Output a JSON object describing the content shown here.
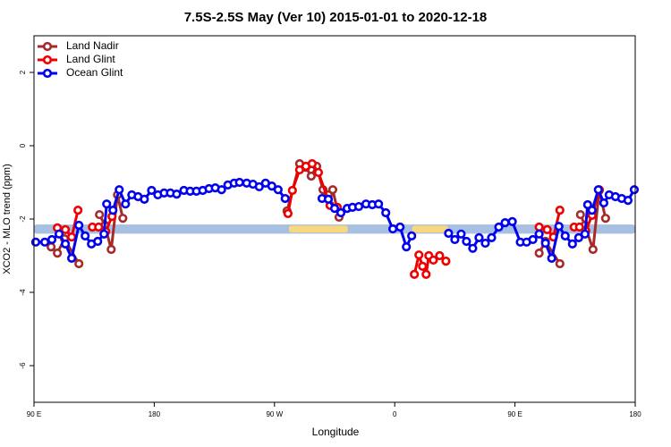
{
  "chart_data": {
    "type": "line",
    "title": "7.5S-2.5S May (Ver 10)   2015-01-01 to 2020-12-18",
    "x_label": "Longitude",
    "y_label": "XCO2 - MLO trend (ppm)",
    "xlim": [
      90,
      540
    ],
    "ylim": [
      -7,
      3
    ],
    "xticks": [
      {
        "value": 90,
        "label": "90 E"
      },
      {
        "value": 180,
        "label": "180"
      },
      {
        "value": 270,
        "label": "90 W"
      },
      {
        "value": 360,
        "label": "0"
      },
      {
        "value": 450,
        "label": "90 E"
      },
      {
        "value": 540,
        "label": "180"
      }
    ],
    "yticks": [
      -6,
      -4,
      -2,
      0,
      2
    ],
    "legend": "top-left",
    "bands": [
      {
        "color": "#a7bfe0",
        "x": [
          90,
          540
        ],
        "y": [
          -2.4,
          -2.15
        ]
      },
      {
        "color": "#f8d77e",
        "x": [
          280.7,
          325
        ],
        "y": [
          -2.37,
          -2.18
        ]
      },
      {
        "color": "#f8d77e",
        "x": [
          373,
          400
        ],
        "y": [
          -2.37,
          -2.18
        ]
      }
    ],
    "series": [
      {
        "name": "Land Nadir",
        "color": "#a52a2a",
        "x": [
          102.8,
          107.5,
          112.8,
          123.6,
          null,
          139.0,
          143.1,
          147.8,
          152.5,
          156.5,
          null,
          279.4,
          288.8,
          293.5,
          297.5,
          301.6,
          306.3,
          310.3,
          313.6,
          318.3,
          null,
          468.1,
          472.8,
          483.6,
          null,
          499.0,
          502.4,
          508.4,
          513.1,
          517.8
        ],
        "values": [
          -2.76,
          -2.93,
          -2.54,
          -3.22,
          null,
          -1.88,
          -2.17,
          -2.83,
          -1.34,
          -1.98,
          null,
          -1.78,
          -0.49,
          -0.59,
          -0.83,
          -0.56,
          -1.2,
          -1.34,
          -1.2,
          -1.95,
          null,
          -2.93,
          -2.61,
          -3.22,
          null,
          -1.88,
          -2.17,
          -2.83,
          -1.22,
          -1.98
        ]
      },
      {
        "name": "Land Glint",
        "color": "#ee0000",
        "x": [
          107.5,
          113.5,
          118.2,
          122.9,
          null,
          133.7,
          138.4,
          143.7,
          148.4,
          null,
          280.1,
          283.4,
          288.8,
          293.5,
          298.2,
          302.9,
          311.6,
          317.0,
          null,
          374.7,
          378.1,
          380.8,
          383.5,
          385.5,
          388.9,
          393.6,
          398.3,
          null,
          468.1,
          474.1,
          478.8,
          483.6,
          null,
          494.3,
          498.3,
          503.0,
          507.7,
          513.1
        ],
        "values": [
          -2.24,
          -2.29,
          -2.49,
          -1.76,
          null,
          -2.22,
          -2.22,
          -2.34,
          -1.93,
          null,
          -1.85,
          -1.22,
          -0.66,
          -0.56,
          -0.49,
          -0.73,
          -1.63,
          -1.68,
          null,
          -3.51,
          -2.98,
          -3.29,
          -3.51,
          -3.0,
          -3.12,
          -3.0,
          -3.15,
          null,
          -2.22,
          -2.29,
          -2.49,
          -1.76,
          null,
          -2.22,
          -2.22,
          -2.32,
          -1.9,
          -1.2
        ]
      },
      {
        "name": "Ocean Glint",
        "color": "#0000ee",
        "x": [
          91.3,
          98.1,
          103.4,
          108.8,
          113.5,
          118.2,
          123.6,
          128.3,
          133.0,
          137.7,
          142.4,
          144.4,
          149.1,
          153.8,
          158.5,
          163.2,
          167.9,
          172.6,
          178.0,
          182.7,
          187.4,
          192.1,
          196.8,
          202.2,
          206.9,
          211.6,
          216.3,
          221.0,
          225.7,
          230.4,
          235.1,
          239.8,
          243.8,
          249.2,
          253.9,
          258.6,
          263.3,
          268.0,
          272.7,
          278.0,
          null,
          305.6,
          310.3,
          315.0,
          319.7,
          324.4,
          328.4,
          333.1,
          338.5,
          343.2,
          347.9,
          353.3,
          358.6,
          364.0,
          368.7,
          372.7,
          null,
          400.3,
          405.0,
          409.7,
          413.7,
          418.4,
          423.1,
          427.8,
          432.5,
          437.9,
          442.6,
          448.0,
          454.0,
          458.7,
          463.4,
          468.1,
          472.8,
          477.5,
          482.9,
          487.6,
          493.0,
          497.7,
          502.4,
          504.4,
          507.7,
          512.4,
          516.5,
          520.5,
          525.2,
          529.9,
          534.6,
          539.3
        ],
        "values": [
          -2.63,
          -2.63,
          -2.56,
          -2.41,
          -2.68,
          -3.07,
          -2.17,
          -2.46,
          -2.68,
          -2.61,
          -2.41,
          -1.59,
          -1.76,
          -1.2,
          -1.59,
          -1.34,
          -1.39,
          -1.46,
          -1.22,
          -1.34,
          -1.29,
          -1.29,
          -1.32,
          -1.22,
          -1.24,
          -1.24,
          -1.22,
          -1.17,
          -1.15,
          -1.2,
          -1.07,
          -1.02,
          -1.0,
          -1.02,
          -1.05,
          -1.12,
          -1.02,
          -1.1,
          -1.2,
          -1.44,
          null,
          -1.44,
          -1.46,
          -1.71,
          -1.83,
          -1.71,
          -1.68,
          -1.66,
          -1.59,
          -1.61,
          -1.59,
          -1.83,
          -2.27,
          -2.22,
          -2.76,
          -2.46,
          null,
          -2.39,
          -2.56,
          -2.41,
          -2.61,
          -2.8,
          -2.51,
          -2.66,
          -2.51,
          -2.22,
          -2.1,
          -2.07,
          -2.63,
          -2.63,
          -2.56,
          -2.41,
          -2.66,
          -3.07,
          -2.2,
          -2.46,
          -2.68,
          -2.51,
          -2.41,
          -1.61,
          -1.76,
          -1.2,
          -1.56,
          -1.34,
          -1.39,
          -1.44,
          -1.49,
          -1.2
        ]
      }
    ]
  }
}
